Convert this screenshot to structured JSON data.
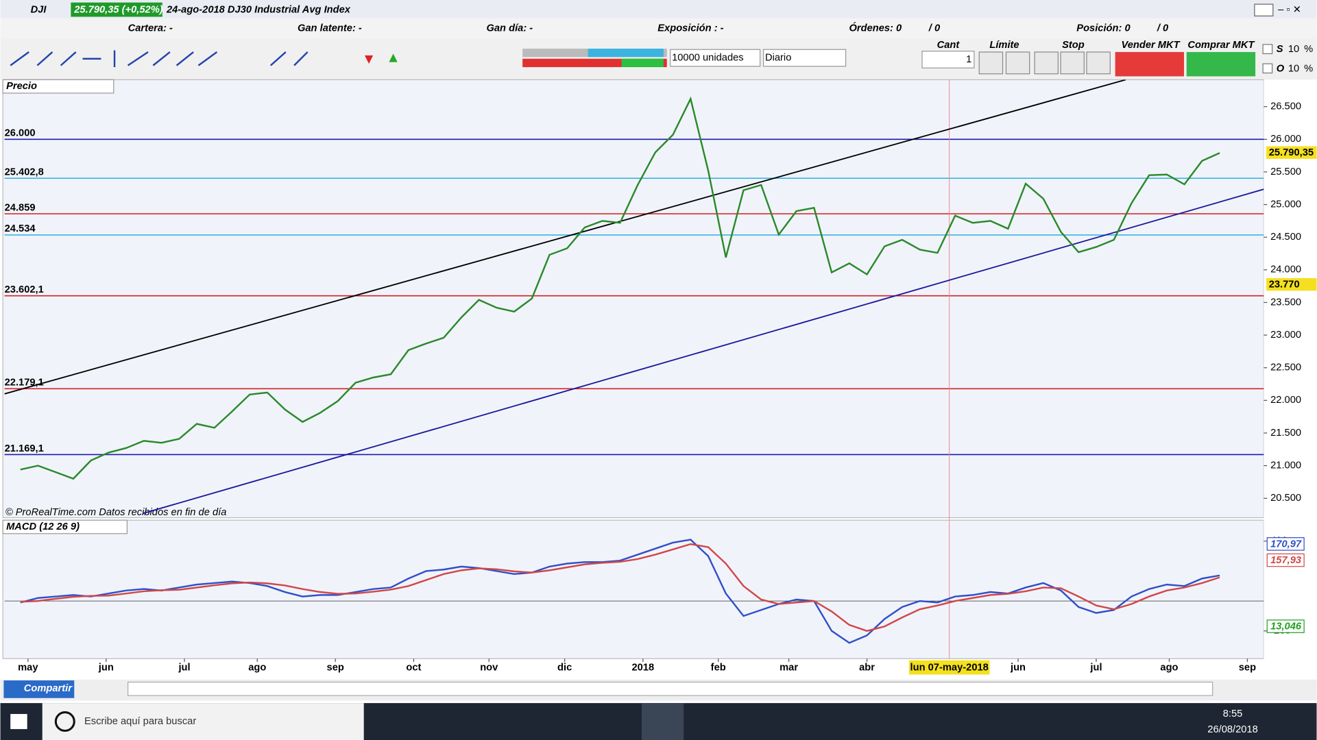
{
  "window": {
    "symbol": "DJI",
    "price_badge": "25.790,35 (+0,52%)",
    "title": "24-ago-2018 DJ30 Industrial Avg Index"
  },
  "account": {
    "cartera": "Cartera: -",
    "latente": "Gan latente: -",
    "dia": "Gan día: -",
    "exposicion": "Exposición : -",
    "ordenes": "Órdenes: 0",
    "ordenes2": "/ 0",
    "posicion": "Posición: 0",
    "posicion2": "/ 0"
  },
  "toolbar": {
    "units": "10000 unidades",
    "period": "Diario",
    "cant_label": "Cant",
    "cant": "1",
    "limite": "Límite",
    "stop": "Stop",
    "vender": "Vender MKT",
    "comprar": "Comprar MKT",
    "s": "S",
    "o": "O",
    "pct1": "10",
    "pct2": "10",
    "pct_sign1": "%",
    "pct_sign2": "%"
  },
  "chart_data": [
    {
      "type": "line",
      "title": "Precio",
      "credit": "© ProRealTime.com  Datos recibidos en fin de día",
      "series": [
        {
          "color": "#2a8a2a",
          "values": [
            20940,
            21000,
            20900,
            20800,
            21080,
            21200,
            21270,
            21380,
            21350,
            21410,
            21640,
            21580,
            21830,
            22090,
            22120,
            21860,
            21670,
            21810,
            21990,
            22270,
            22350,
            22400,
            22770,
            22870,
            22960,
            23270,
            23540,
            23420,
            23360,
            23560,
            24230,
            24330,
            24650,
            24750,
            24720,
            25300,
            25800,
            26070,
            26620,
            25520,
            24190,
            25220,
            25300,
            24540,
            24900,
            24950,
            23960,
            24100,
            23930,
            24360,
            24460,
            24310,
            24260,
            24830,
            24720,
            24750,
            24630,
            25320,
            25090,
            24580,
            24270,
            24350,
            24460,
            25020,
            25450,
            25460,
            25310,
            25670,
            25790
          ]
        }
      ],
      "xlim": [
        -0.9,
        70.5
      ],
      "ylim": [
        20203,
        26913
      ],
      "yticks": [
        {
          "value": 20500,
          "label": "20.500"
        },
        {
          "value": 21000,
          "label": "21.000"
        },
        {
          "value": 21500,
          "label": "21.500"
        },
        {
          "value": 22000,
          "label": "22.000"
        },
        {
          "value": 22500,
          "label": "22.500"
        },
        {
          "value": 23000,
          "label": "23.000"
        },
        {
          "value": 23500,
          "label": "23.500"
        },
        {
          "value": 24000,
          "label": "24.000"
        },
        {
          "value": 24500,
          "label": "24.500"
        },
        {
          "value": 25000,
          "label": "25.000"
        },
        {
          "value": 25500,
          "label": "25.500"
        },
        {
          "value": 26000,
          "label": "26.000"
        },
        {
          "value": 26500,
          "label": "26.500"
        }
      ],
      "levels": [
        {
          "value": 26000,
          "label": "26.000",
          "color": "#1a1aa8"
        },
        {
          "value": 25402.8,
          "label": "25.402,8",
          "color": "#3cb4e0"
        },
        {
          "value": 24859,
          "label": "24.859",
          "color": "#d42020"
        },
        {
          "value": 24534,
          "label": "24.534",
          "color": "#3cb4e0"
        },
        {
          "value": 23602.1,
          "label": "23.602,1",
          "color": "#d42020"
        },
        {
          "value": 22179.1,
          "label": "22.179,1",
          "color": "#d42020"
        },
        {
          "value": 21169.1,
          "label": "21.169,1",
          "color": "#1a1aa8"
        }
      ],
      "trendlines": [
        {
          "x": [
            -0.9,
            62.67
          ],
          "y": [
            22100,
            26913
          ],
          "color": "#000000"
        },
        {
          "x": [
            6.95,
            70.5
          ],
          "y": [
            20268,
            25235
          ],
          "color": "#1a1a9a"
        }
      ],
      "price_label": {
        "value": 25790.35,
        "label": "25.790,35"
      },
      "cursor_price": {
        "value": 23770,
        "label": "23.770"
      },
      "cursor": {
        "x": 52.67,
        "label": "lun 07-may-2018"
      }
    },
    {
      "type": "line",
      "title": "MACD (12 26 9)",
      "xlim": [
        -0.9,
        70.5
      ],
      "ylim": [
        -385,
        540
      ],
      "yticks": [
        -200,
        400
      ],
      "series": [
        {
          "color": "#3050c8",
          "values": [
            -10,
            20,
            30,
            40,
            30,
            50,
            70,
            80,
            70,
            90,
            110,
            120,
            130,
            120,
            100,
            60,
            30,
            40,
            40,
            60,
            80,
            90,
            150,
            200,
            210,
            230,
            220,
            200,
            180,
            190,
            230,
            250,
            260,
            260,
            270,
            310,
            350,
            390,
            410,
            300,
            50,
            -100,
            -60,
            -20,
            10,
            0,
            -200,
            -280,
            -230,
            -120,
            -40,
            0,
            -10,
            30,
            40,
            60,
            50,
            90,
            120,
            70,
            -40,
            -80,
            -60,
            30,
            80,
            110,
            100,
            150,
            171
          ]
        },
        {
          "color": "#d04848",
          "values": [
            -5,
            0,
            15,
            28,
            34,
            36,
            50,
            65,
            72,
            75,
            90,
            105,
            118,
            124,
            118,
            104,
            80,
            60,
            48,
            50,
            62,
            76,
            100,
            140,
            180,
            205,
            218,
            212,
            198,
            190,
            205,
            225,
            245,
            255,
            262,
            280,
            310,
            345,
            380,
            360,
            250,
            100,
            10,
            -20,
            -10,
            0,
            -70,
            -160,
            -200,
            -170,
            -110,
            -55,
            -30,
            0,
            20,
            40,
            48,
            65,
            90,
            85,
            30,
            -30,
            -55,
            -20,
            30,
            70,
            90,
            120,
            158
          ]
        }
      ],
      "last_labels": [
        {
          "value": 170.97,
          "label": "170,97",
          "color": "#3050c8"
        },
        {
          "value": 157.93,
          "label": "157,93",
          "color": "#d04848"
        },
        {
          "value": 13.046,
          "label": "13,046",
          "color": "#20a020"
        }
      ],
      "xticks": [
        {
          "value": 0.43,
          "label": "may"
        },
        {
          "value": 4.86,
          "label": "jun"
        },
        {
          "value": 9.3,
          "label": "jul"
        },
        {
          "value": 13.43,
          "label": "ago"
        },
        {
          "value": 17.86,
          "label": "sep"
        },
        {
          "value": 22.3,
          "label": "oct"
        },
        {
          "value": 26.57,
          "label": "nov"
        },
        {
          "value": 30.86,
          "label": "dic"
        },
        {
          "value": 35.3,
          "label": "2018"
        },
        {
          "value": 39.57,
          "label": "feb"
        },
        {
          "value": 43.57,
          "label": "mar"
        },
        {
          "value": 48.0,
          "label": "abr"
        },
        {
          "value": 56.57,
          "label": "jun"
        },
        {
          "value": 61.0,
          "label": "jul"
        },
        {
          "value": 65.14,
          "label": "ago"
        },
        {
          "value": 69.57,
          "label": "sep"
        }
      ]
    }
  ],
  "bottom": {
    "share": "Compartir"
  },
  "taskbar": {
    "search": "Escribe aquí para buscar",
    "time": "8:55",
    "date": "26/08/2018"
  }
}
